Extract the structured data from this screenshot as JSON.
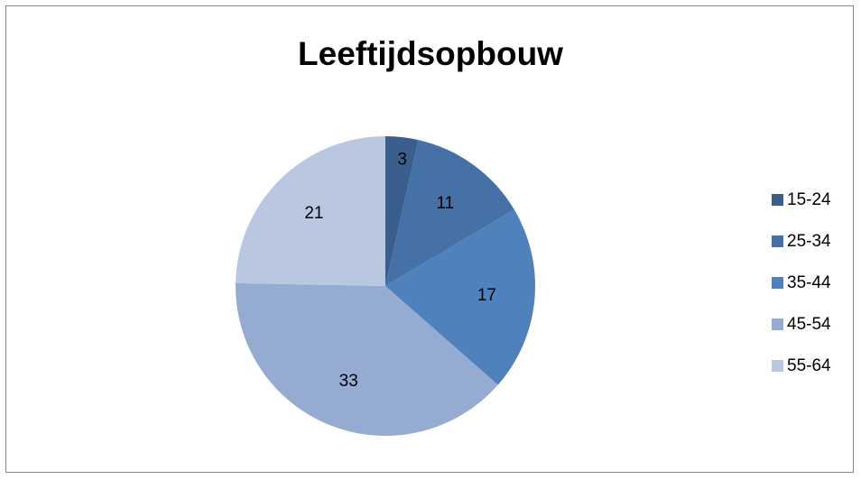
{
  "chart_data": {
    "type": "pie",
    "title": "Leeftijdsopbouw",
    "categories": [
      "15-24",
      "25-34",
      "35-44",
      "45-54",
      "55-64"
    ],
    "values": [
      3,
      11,
      17,
      33,
      21
    ],
    "colors": [
      "#3A5F8F",
      "#4571A6",
      "#4F81BD",
      "#95ABD2",
      "#B9C7E1"
    ],
    "start_angle_deg": 0,
    "direction": "clockwise",
    "data_labels": true,
    "legend_position": "right"
  }
}
